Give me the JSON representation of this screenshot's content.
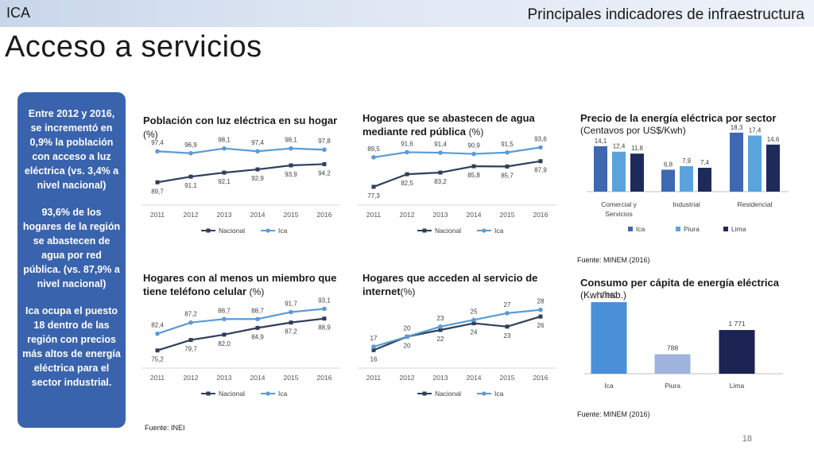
{
  "header": {
    "region": "ICA",
    "section": "Principales indicadores de infraestructura"
  },
  "page_title": "Acceso a servicios",
  "sidebar": {
    "paragraphs": [
      "Entre 2012 y 2016, se incrementó en 0,9% la población con acceso a luz eléctrica (vs. 3,4% a nivel nacional)",
      "93,6% de los hogares de la región se abastecen de agua por red pública. (vs. 87,9% a nivel nacional)",
      "Ica ocupa el puesto 18 dentro de las región con precios más altos de energía eléctrica para el sector industrial."
    ]
  },
  "titles": {
    "luz": {
      "main": "Población con luz eléctrica en su hogar",
      "unit": "(%)"
    },
    "agua": {
      "main": "Hogares que se abastecen de agua mediante red pública",
      "unit": "(%)"
    },
    "celular": {
      "main": "Hogares con al menos un miembro que tiene teléfono celular",
      "unit": "(%)"
    },
    "internet": {
      "main": "Hogares que acceden al servicio de internet",
      "unit": "(%)"
    },
    "precio": {
      "main": "Precio de la energía eléctrica por sector",
      "sub": "(Centavos por US$/Kwh)"
    },
    "consumo": {
      "main": "Consumo per cápita de energía eléctrica",
      "sub": "(Kwh/hab.)"
    }
  },
  "sources": {
    "inei": "Fuente: INEI",
    "minem1": "Fuente: MINEM (2016)",
    "minem2": "Fuente: MINEM (2016)"
  },
  "page_number": "18",
  "colors": {
    "nacional": "#2f3f5c",
    "ica": "#5b9bd5",
    "bar_ica": "#3e68b0",
    "bar_piura": "#5ba3dc",
    "bar_lima": "#1e2a5a",
    "consumo_ica": "#4a90d9",
    "consumo_piura": "#9fb4dd",
    "consumo_lima": "#1c2454",
    "box": "#3a63ad"
  },
  "chart_data": [
    {
      "id": "luz",
      "type": "line",
      "x": [
        "2011",
        "2012",
        "2013",
        "2014",
        "2015",
        "2016"
      ],
      "series": [
        {
          "name": "Nacional",
          "values": [
            89.7,
            91.1,
            92.1,
            92.9,
            93.9,
            94.2
          ],
          "labels": [
            "89,7",
            "91,1",
            "92,1",
            "92,9",
            "93,9",
            "94,2"
          ]
        },
        {
          "name": "Ica",
          "values": [
            97.4,
            96.9,
            98.1,
            97.4,
            98.1,
            97.8
          ],
          "labels": [
            "97,4",
            "96,9",
            "98,1",
            "97,4",
            "98,1",
            "97,8"
          ]
        }
      ],
      "ylim": [
        86,
        101
      ]
    },
    {
      "id": "agua",
      "type": "line",
      "x": [
        "2011",
        "2012",
        "2013",
        "2014",
        "2015",
        "2016"
      ],
      "series": [
        {
          "name": "Nacional",
          "values": [
            77.3,
            82.5,
            83.2,
            85.8,
            85.7,
            87.9
          ],
          "labels": [
            "77,3",
            "82,5",
            "83,2",
            "85,8",
            "85,7",
            "87,9"
          ]
        },
        {
          "name": "Ica",
          "values": [
            89.5,
            91.6,
            91.4,
            90.9,
            91.5,
            93.6
          ],
          "labels": [
            "89,5",
            "91,6",
            "91,4",
            "90,9",
            "91,5",
            "93,6"
          ]
        }
      ],
      "ylim": [
        73,
        98
      ]
    },
    {
      "id": "celular",
      "type": "line",
      "x": [
        "2011",
        "2012",
        "2013",
        "2014",
        "2015",
        "2016"
      ],
      "series": [
        {
          "name": "Nacional",
          "values": [
            75.2,
            79.7,
            82.0,
            84.9,
            87.2,
            88.9
          ],
          "labels": [
            "75,2",
            "79,7",
            "82,0",
            "84,9",
            "87,2",
            "88,9"
          ]
        },
        {
          "name": "Ica",
          "values": [
            82.4,
            87.2,
            88.7,
            88.7,
            91.7,
            93.1
          ],
          "labels": [
            "82,4",
            "87,2",
            "88,7",
            "88,7",
            "91,7",
            "93,1"
          ]
        }
      ],
      "ylim": [
        71,
        97
      ]
    },
    {
      "id": "internet",
      "type": "line",
      "x": [
        "2011",
        "2012",
        "2013",
        "2014",
        "2015",
        "2016"
      ],
      "series": [
        {
          "name": "Nacional",
          "values": [
            16,
            20,
            22,
            24,
            23,
            26
          ],
          "labels": [
            "16",
            "20",
            "22",
            "24",
            "23",
            "26"
          ]
        },
        {
          "name": "Ica",
          "values": [
            17,
            20,
            23,
            25,
            27,
            28
          ],
          "labels": [
            "17",
            "20",
            "23",
            "25",
            "27",
            "28"
          ]
        }
      ],
      "ylim": [
        13,
        31
      ]
    },
    {
      "id": "precio",
      "type": "bar",
      "categories": [
        "Comercial y Servicios",
        "Industrial",
        "Residencial"
      ],
      "series": [
        {
          "name": "Ica",
          "values": [
            14.1,
            6.8,
            18.3
          ],
          "labels": [
            "14,1",
            "6,8",
            "18,3"
          ]
        },
        {
          "name": "Piura",
          "values": [
            12.4,
            7.9,
            17.4
          ],
          "labels": [
            "12,4",
            "7,9",
            "17,4"
          ]
        },
        {
          "name": "Lima",
          "values": [
            11.8,
            7.4,
            14.6
          ],
          "labels": [
            "11,8",
            "7,4",
            "14,6"
          ]
        }
      ],
      "ylim": [
        0,
        19
      ]
    },
    {
      "id": "consumo",
      "type": "bar",
      "categories": [
        "Ica",
        "Piura",
        "Lima"
      ],
      "values": [
        2960,
        788,
        1771
      ],
      "labels": [
        "2 960",
        "788",
        "1 771"
      ],
      "ylim": [
        0,
        2900
      ]
    }
  ]
}
